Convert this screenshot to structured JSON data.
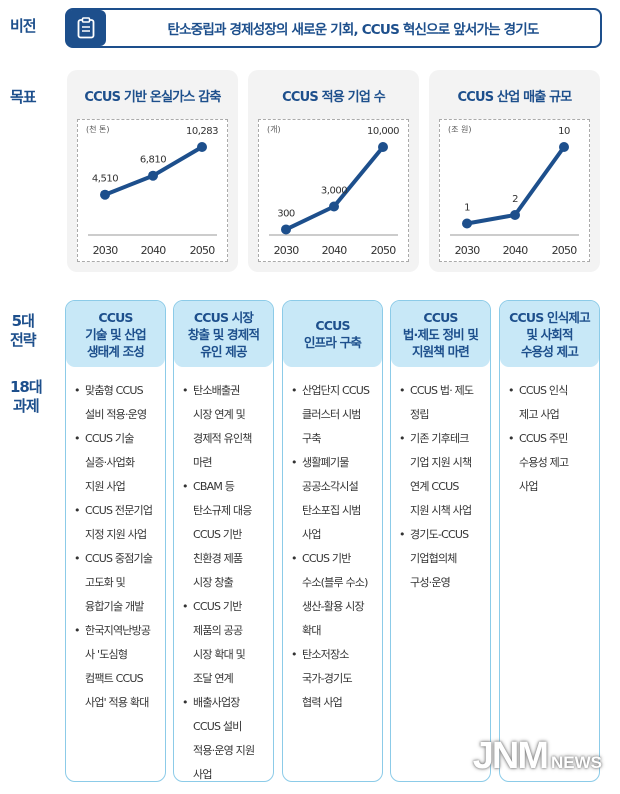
{
  "labels": {
    "vision": "비전",
    "goal": "목표",
    "strategy": "5대\n전략",
    "tasks": "18대\n과제"
  },
  "vision": {
    "icon": "clipboard-icon",
    "text": "탄소중립과 경제성장의 새로운 기회, CCUS 혁신으로 앞서가는 경기도"
  },
  "colors": {
    "primary": "#1d4f8c",
    "header_bg": "#c8e8f7",
    "border": "#8ccbe8"
  },
  "chart_data": [
    {
      "type": "line",
      "title": "CCUS 기반 온실가스 감축",
      "unit": "(천 톤)",
      "categories": [
        "2030",
        "2040",
        "2050"
      ],
      "values": [
        4510,
        6810,
        10283
      ],
      "labels": [
        "4,510",
        "6,810",
        "10,283"
      ]
    },
    {
      "type": "line",
      "title": "CCUS 적용 기업 수",
      "unit": "(개)",
      "categories": [
        "2030",
        "2040",
        "2050"
      ],
      "values": [
        300,
        3000,
        10000
      ],
      "labels": [
        "300",
        "3,000",
        "10,000"
      ]
    },
    {
      "type": "line",
      "title": "CCUS 산업 매출 규모",
      "unit": "(조 원)",
      "categories": [
        "2030",
        "2040",
        "2050"
      ],
      "values": [
        1,
        2,
        10
      ],
      "labels": [
        "1",
        "2",
        "10"
      ]
    }
  ],
  "strategies": [
    {
      "title": "CCUS\n기술 및 산업\n생태계 조성",
      "items": [
        "맞춤형 CCUS\n설비 적용·운영",
        "CCUS 기술\n실증·사업화\n지원 사업",
        "CCUS 전문기업\n지정 지원 사업",
        "CCUS 중점기술\n고도화 및\n융합기술 개발",
        "한국지역난방공\n사 '도심형\n컴팩트 CCUS\n사업' 적용 확대"
      ]
    },
    {
      "title": "CCUS 시장\n창출 및 경제적\n유인 제공",
      "items": [
        "탄소배출권\n시장 연계 및\n경제적 유인책\n마련",
        "CBAM 등\n탄소규제 대응\nCCUS 기반\n친환경 제품\n시장 창출",
        "CCUS 기반\n제품의 공공\n시장 확대 및\n조달 연계",
        "배출사업장\nCCUS 설비\n적용·운영 지원\n사업"
      ]
    },
    {
      "title": "CCUS\n인프라 구축",
      "items": [
        "산업단지 CCUS\n클러스터 시범\n구축",
        "생활폐기물\n공공소각시설\n탄소포집 시범\n사업",
        "CCUS 기반\n수소(블루 수소)\n생산-활용 시장\n확대",
        "탄소저장소\n국가-경기도\n협력 사업"
      ]
    },
    {
      "title": "CCUS\n법·제도 정비 및\n지원책 마련",
      "items": [
        "CCUS 법· 제도\n정립",
        "기존 기후테크\n기업 지원 시책\n연계 CCUS\n지원 시책 사업",
        "경기도-CCUS\n기업협의체\n구성·운영"
      ]
    },
    {
      "title": "CCUS 인식제고\n및 사회적\n수용성 제고",
      "items": [
        "CCUS 인식\n제고 사업",
        "CCUS 주민\n수용성 제고\n사업"
      ]
    }
  ],
  "watermark": {
    "main": "JNM",
    "sub": "NEWS"
  }
}
